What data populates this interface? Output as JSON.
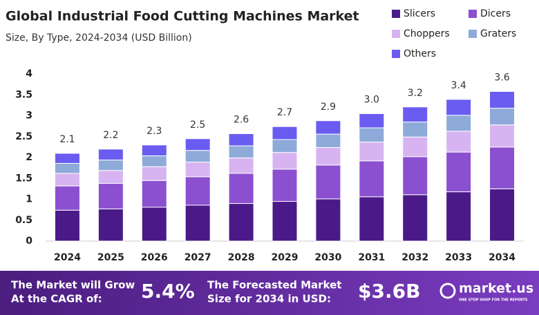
{
  "chart_data": {
    "type": "stacked-bar",
    "title": "Global Industrial Food Cutting Machines Market",
    "subtitle": "Size, By Type, 2024-2034 (USD Billion)",
    "categories": [
      "2024",
      "2025",
      "2026",
      "2027",
      "2028",
      "2029",
      "2030",
      "2031",
      "2032",
      "2033",
      "2034"
    ],
    "series": [
      {
        "name": "Slicers",
        "color": "#4b1a89",
        "values": [
          0.74,
          0.77,
          0.81,
          0.86,
          0.9,
          0.95,
          1.01,
          1.06,
          1.11,
          1.18,
          1.25
        ]
      },
      {
        "name": "Dicers",
        "color": "#8b50d0",
        "values": [
          0.58,
          0.61,
          0.64,
          0.68,
          0.72,
          0.77,
          0.81,
          0.86,
          0.91,
          0.95,
          1.0
        ]
      },
      {
        "name": "Choppers",
        "color": "#d7b4f1",
        "values": [
          0.3,
          0.31,
          0.33,
          0.35,
          0.37,
          0.4,
          0.42,
          0.45,
          0.47,
          0.5,
          0.53
        ]
      },
      {
        "name": "Graters",
        "color": "#8eaad9",
        "values": [
          0.24,
          0.25,
          0.26,
          0.28,
          0.29,
          0.31,
          0.32,
          0.34,
          0.36,
          0.38,
          0.4
        ]
      },
      {
        "name": "Others",
        "color": "#6a5cf0",
        "values": [
          0.24,
          0.26,
          0.26,
          0.28,
          0.29,
          0.31,
          0.32,
          0.34,
          0.36,
          0.38,
          0.4
        ]
      }
    ],
    "total_labels": [
      "2.1",
      "2.2",
      "2.3",
      "2.5",
      "2.6",
      "2.7",
      "2.9",
      "3.0",
      "3.2",
      "3.4",
      "3.6"
    ],
    "ylim": [
      0,
      4
    ],
    "yticks": [
      0,
      0.5,
      1,
      1.5,
      2,
      2.5,
      3,
      3.5,
      4
    ],
    "grid": false,
    "legend": "top-right"
  },
  "footer": {
    "cagr_text": [
      "The Market will Grow",
      "At the CAGR of:"
    ],
    "cagr_value": "5.4%",
    "forecast_text": [
      "The Forecasted Market",
      "Size for 2034 in USD:"
    ],
    "forecast_value": "$3.6B",
    "brand": "market.us",
    "tagline": "ONE STOP SHOP FOR THE REPORTS"
  }
}
